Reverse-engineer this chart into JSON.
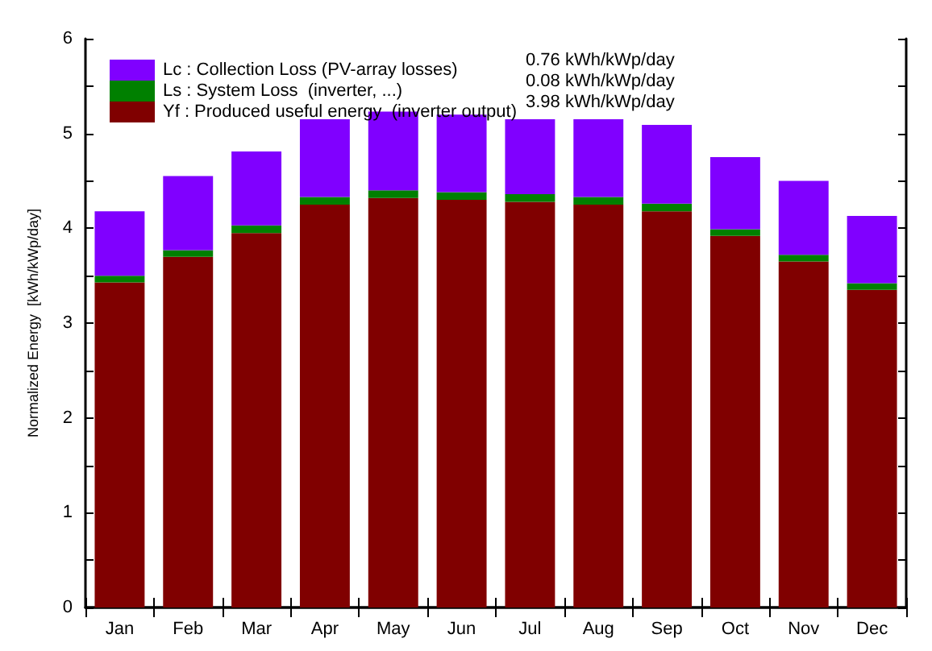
{
  "chart_data": {
    "type": "bar",
    "stacked": true,
    "ylabel": "Normalized Energy  [kWh/kWp/day]",
    "categories": [
      "Jan",
      "Feb",
      "Mar",
      "Apr",
      "May",
      "Jun",
      "Jul",
      "Aug",
      "Sep",
      "Oct",
      "Nov",
      "Dec"
    ],
    "series": [
      {
        "name": "Yf : Produced useful energy  (inverter output)",
        "color": "#800000",
        "values": [
          3.43,
          3.7,
          3.95,
          4.25,
          4.32,
          4.3,
          4.28,
          4.25,
          4.18,
          3.92,
          3.65,
          3.35
        ]
      },
      {
        "name": "Ls : System Loss  (inverter, ...)",
        "color": "#008000",
        "values": [
          0.07,
          0.07,
          0.08,
          0.08,
          0.08,
          0.08,
          0.08,
          0.08,
          0.08,
          0.07,
          0.07,
          0.07
        ]
      },
      {
        "name": "Lc : Collection Loss (PV-array losses)",
        "color": "#8000ff",
        "values": [
          0.68,
          0.78,
          0.78,
          0.82,
          0.83,
          0.82,
          0.79,
          0.82,
          0.83,
          0.76,
          0.78,
          0.71
        ]
      }
    ],
    "annotations": [
      "3.98 kWh/kWp/day",
      "0.08 kWh/kWp/day",
      "0.76 kWh/kWp/day"
    ],
    "ylim": [
      0,
      6
    ],
    "yticks": [
      0,
      {
        "value": 0.5,
        "label": null
      },
      1,
      {
        "value": 1.5,
        "label": null
      },
      2,
      {
        "value": 2.5,
        "label": null
      },
      3,
      {
        "value": 3.5,
        "label": null
      },
      4,
      {
        "value": 4.5,
        "label": null
      },
      5,
      {
        "value": 5.5,
        "label": null
      },
      6
    ],
    "legend": "top left",
    "grid": false
  }
}
